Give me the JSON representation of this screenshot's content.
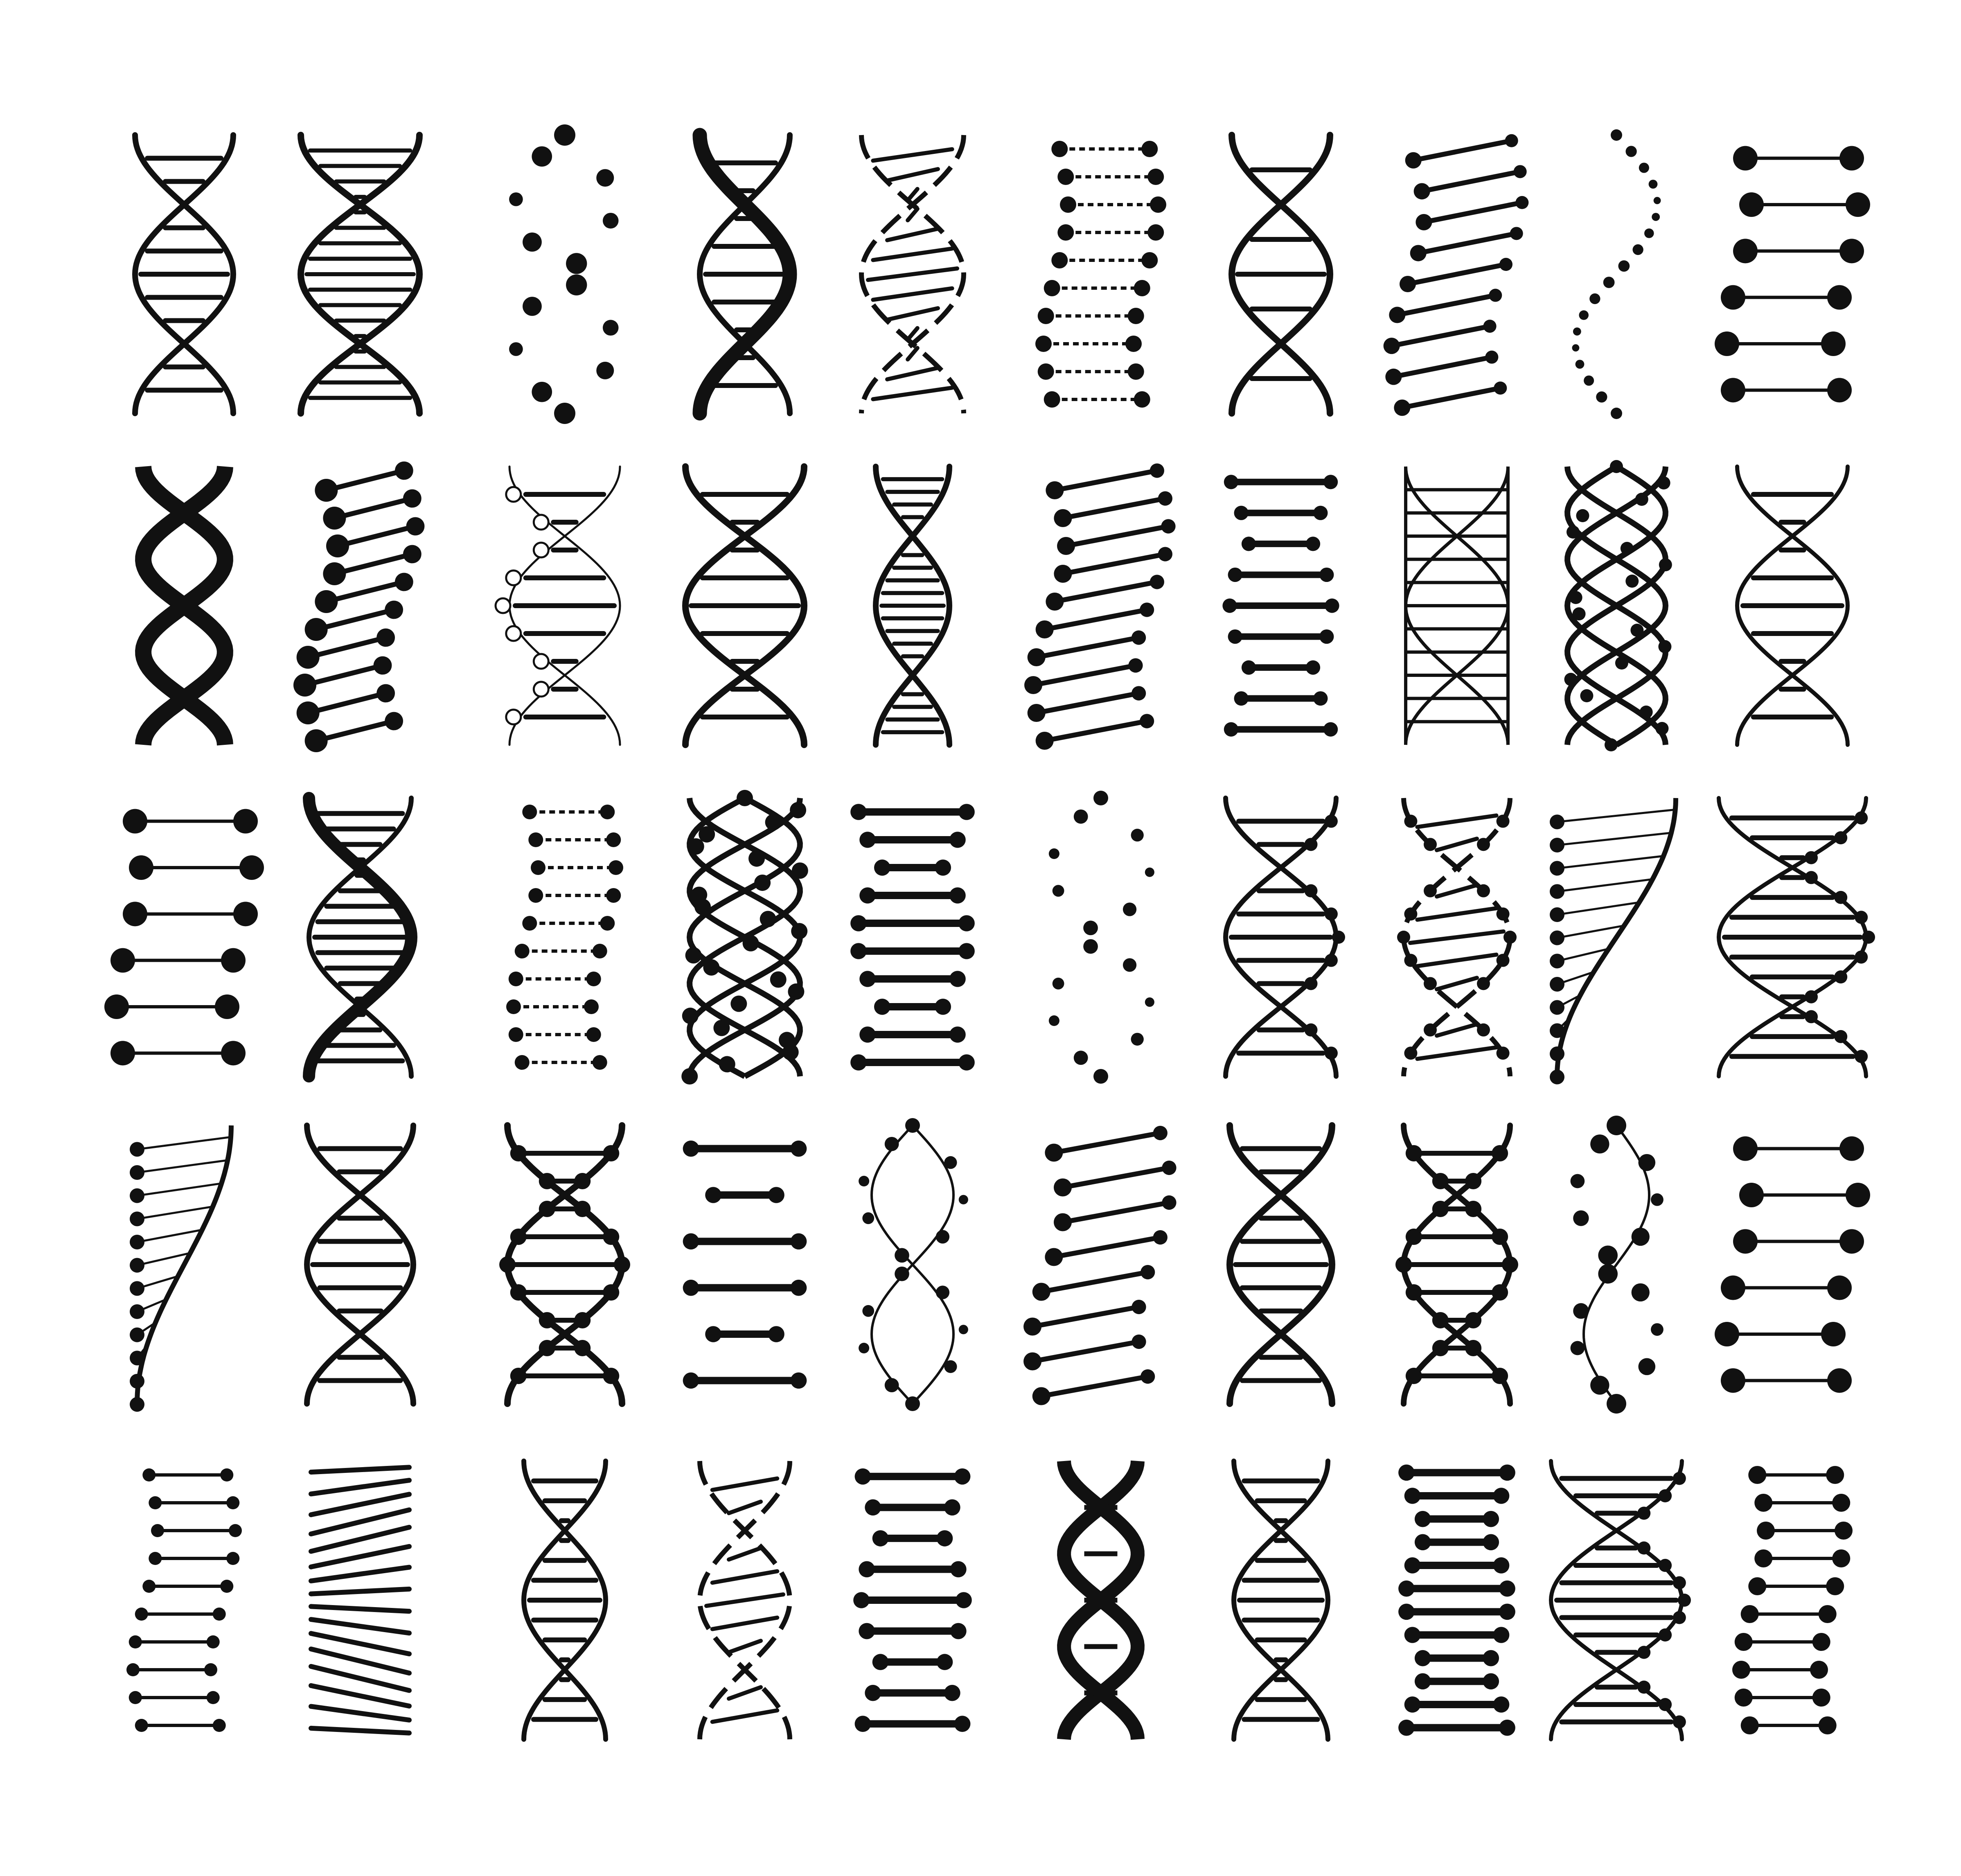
{
  "canvas": {
    "background": "#ffffff",
    "ink": "#111111"
  },
  "grid": {
    "rows": 5,
    "columns": 10
  },
  "icons": [
    "dna-helix-icon",
    "dna-helix-icon",
    "dna-helix-icon",
    "dna-helix-icon",
    "dna-helix-icon",
    "dna-helix-icon",
    "dna-helix-icon",
    "dna-helix-icon",
    "dna-helix-icon",
    "dna-helix-icon",
    "dna-helix-icon",
    "dna-helix-icon",
    "dna-helix-icon",
    "dna-helix-icon",
    "dna-helix-icon",
    "dna-helix-icon",
    "dna-helix-icon",
    "dna-helix-icon",
    "dna-helix-icon",
    "dna-helix-icon",
    "dna-helix-icon",
    "dna-helix-icon",
    "dna-helix-icon",
    "dna-helix-icon",
    "dna-helix-icon",
    "dna-helix-icon",
    "dna-helix-icon",
    "dna-helix-icon",
    "dna-helix-icon",
    "dna-helix-icon",
    "dna-helix-icon",
    "dna-helix-icon",
    "dna-helix-icon",
    "dna-helix-icon",
    "dna-helix-icon",
    "dna-helix-icon",
    "dna-helix-icon",
    "dna-helix-icon",
    "dna-helix-icon",
    "dna-helix-icon",
    "dna-helix-icon",
    "dna-helix-icon",
    "dna-helix-icon",
    "dna-helix-icon",
    "dna-helix-icon",
    "dna-helix-icon",
    "dna-helix-icon",
    "dna-helix-icon",
    "dna-helix-icon",
    "dna-helix-icon"
  ]
}
